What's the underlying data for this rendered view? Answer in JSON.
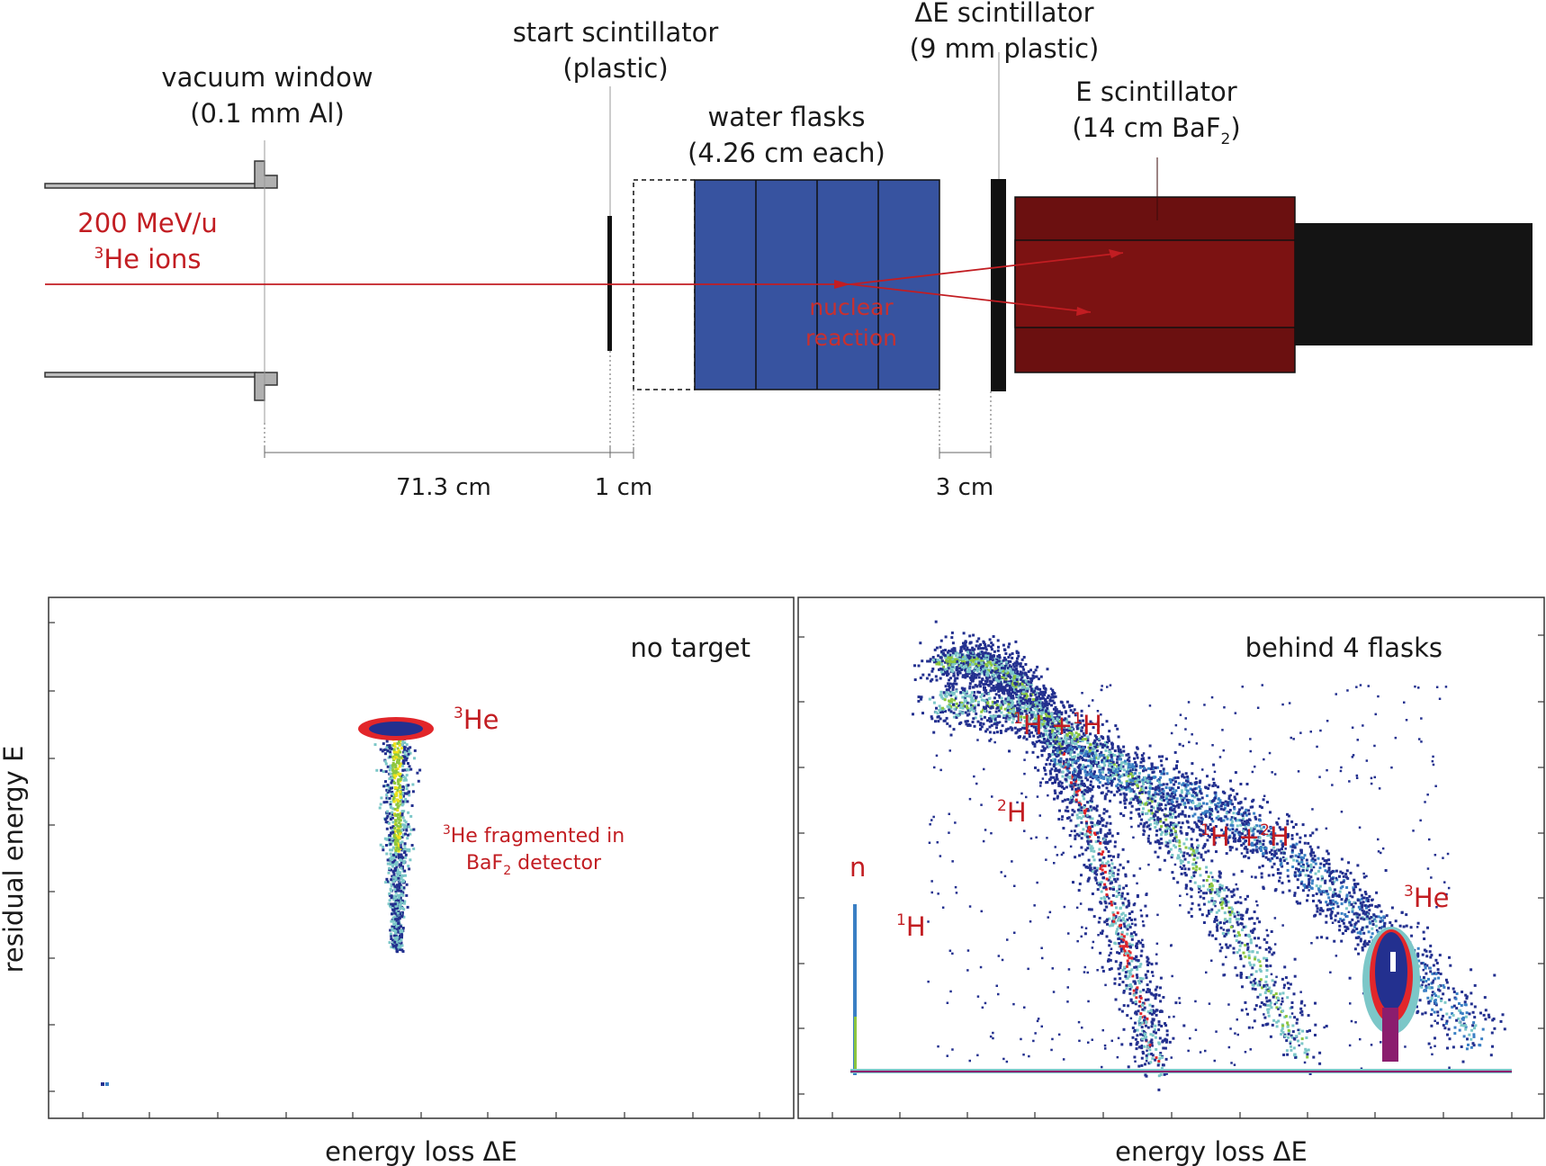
{
  "setup": {
    "vacuum_window": {
      "line1": "vacuum window",
      "line2": "(0.1 mm Al)"
    },
    "start_scint": {
      "line1": "start scintillator",
      "line2": "(plastic)"
    },
    "water_flasks": {
      "line1": "water flasks",
      "line2": "(4.26 cm each)"
    },
    "de_scint": {
      "line1": "ΔE scintillator",
      "line2": "(9 mm plastic)"
    },
    "e_scint": {
      "line1": "E scintillator",
      "line2_a": "(14 cm BaF",
      "line2_sub": "2",
      "line2_b": ")"
    },
    "beam": {
      "line1": "200 MeV/u",
      "line2_sup": "3",
      "line2": "He ions"
    },
    "reaction": {
      "line1": "nuclear",
      "line2": "reaction"
    },
    "dimensions": [
      "71.3 cm",
      "1 cm",
      "3 cm"
    ],
    "colors": {
      "beam": "#c21d22",
      "water": "#3753a0",
      "baf2": "#6b1010",
      "pmt": "#141414"
    }
  },
  "plots": {
    "xlabel": "energy loss ΔE",
    "ylabel": "residual energy E",
    "left": {
      "title": "no target",
      "label_he_sup": "3",
      "label_he": "He",
      "frag_sup": "3",
      "frag_line1": "He fragmented in",
      "frag_line2_a": "BaF",
      "frag_line2_sub": "2",
      "frag_line2_b": " detector"
    },
    "right": {
      "title": "behind 4 flasks",
      "n": "n",
      "h1_sup": "1",
      "h1": "H",
      "h2_sup": "2",
      "h2": "H",
      "hh_sup1": "1",
      "hh_a": "H +",
      "hh_sup2": "1",
      "hh_b": "H",
      "hd_sup1": "1",
      "hd_a": "H +",
      "hd_sup2": "2",
      "hd_b": "H",
      "he_sup": "3",
      "he": "He"
    },
    "colormap": [
      "#23308f",
      "#3a7fc4",
      "#7cc7c8",
      "#8cc63f",
      "#f2e21a",
      "#e2262a",
      "#8b1d6e"
    ]
  }
}
